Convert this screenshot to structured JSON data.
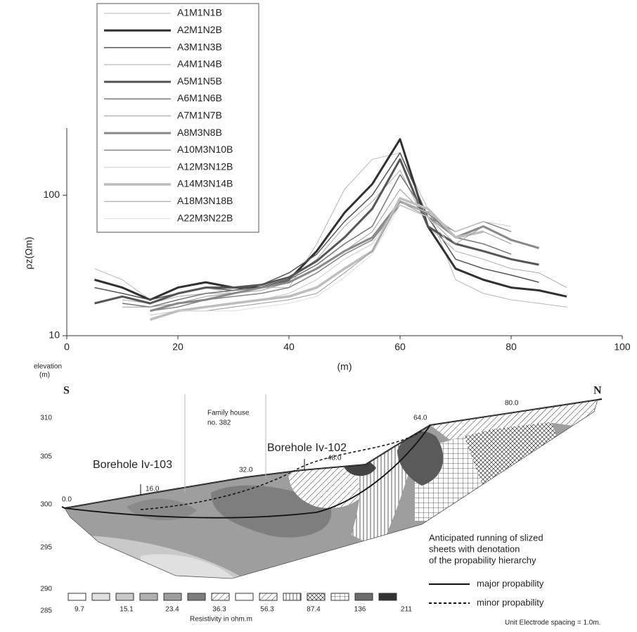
{
  "chart_data": {
    "type": "line",
    "x_label": "(m)",
    "y_label": "ρz(Ωm)",
    "log_y": true,
    "grid": false,
    "x": [
      0,
      5,
      10,
      15,
      20,
      25,
      30,
      35,
      40,
      45,
      50,
      55,
      60,
      65,
      70,
      75,
      80,
      85,
      90
    ],
    "xlim": [
      0,
      100
    ],
    "xticks": [
      0,
      20,
      40,
      60,
      80,
      100
    ],
    "ylim": [
      10,
      300
    ],
    "yticks": [
      10,
      100
    ],
    "series": [
      {
        "name": "A1M1N1B",
        "color": "#b8b8b8",
        "width": 1,
        "values": [
          null,
          30,
          25,
          18,
          20,
          22,
          20,
          22,
          22,
          45,
          110,
          180,
          200,
          80,
          25,
          20,
          18,
          17,
          16
        ]
      },
      {
        "name": "A2M1N2B",
        "color": "#303030",
        "width": 3,
        "values": [
          null,
          25,
          22,
          18,
          22,
          24,
          22,
          22,
          25,
          40,
          75,
          120,
          250,
          60,
          30,
          25,
          22,
          21,
          19
        ]
      },
      {
        "name": "A3M1N3B",
        "color": "#555555",
        "width": 1.5,
        "values": [
          null,
          22,
          20,
          18,
          20,
          22,
          21,
          23,
          28,
          38,
          65,
          100,
          200,
          70,
          35,
          30,
          27,
          24,
          null
        ]
      },
      {
        "name": "A4M1N4B",
        "color": "#aaaaaa",
        "width": 1,
        "values": [
          null,
          null,
          18,
          17,
          19,
          20,
          20,
          22,
          25,
          35,
          60,
          90,
          150,
          60,
          40,
          35,
          30,
          28,
          22
        ]
      },
      {
        "name": "A5M1N5B",
        "color": "#555555",
        "width": 3,
        "values": [
          null,
          17,
          19,
          17,
          20,
          22,
          22,
          23,
          26,
          34,
          50,
          80,
          180,
          60,
          45,
          40,
          35,
          32,
          null
        ]
      },
      {
        "name": "A6M1N6B",
        "color": "#777777",
        "width": 1.5,
        "values": [
          null,
          null,
          17,
          16,
          18,
          20,
          21,
          22,
          25,
          32,
          45,
          60,
          140,
          70,
          50,
          45,
          38,
          null,
          null
        ]
      },
      {
        "name": "A7M1N7B",
        "color": "#999999",
        "width": 1,
        "values": [
          null,
          null,
          16,
          16,
          17,
          19,
          20,
          21,
          24,
          30,
          40,
          55,
          110,
          70,
          50,
          55,
          45,
          null,
          null
        ]
      },
      {
        "name": "A8M3N8B",
        "color": "#888888",
        "width": 3,
        "values": [
          null,
          null,
          null,
          15,
          17,
          18,
          20,
          22,
          24,
          30,
          40,
          50,
          90,
          75,
          50,
          60,
          48,
          42,
          null
        ]
      },
      {
        "name": "A10M3N10B",
        "color": "#858585",
        "width": 1.5,
        "values": [
          null,
          null,
          null,
          15,
          16,
          18,
          19,
          20,
          22,
          28,
          38,
          48,
          85,
          70,
          55,
          65,
          55,
          null,
          null
        ]
      },
      {
        "name": "A12M3N12B",
        "color": "#cccccc",
        "width": 1,
        "values": [
          null,
          null,
          null,
          14,
          15,
          16,
          17,
          18,
          20,
          25,
          35,
          45,
          90,
          75,
          55,
          65,
          60,
          null,
          null
        ]
      },
      {
        "name": "A14M3N14B",
        "color": "#bdbdbd",
        "width": 3.5,
        "values": [
          null,
          null,
          null,
          13,
          15,
          16,
          17,
          18,
          19,
          22,
          30,
          40,
          95,
          80,
          50,
          55,
          null,
          null,
          null
        ]
      },
      {
        "name": "A18M3N18B",
        "color": "#9a9a9a",
        "width": 1,
        "values": [
          null,
          null,
          null,
          null,
          15,
          15,
          16,
          17,
          18,
          20,
          28,
          40,
          90,
          70,
          45,
          60,
          null,
          null,
          null
        ]
      },
      {
        "name": "A22M3N22B",
        "color": "#dddddd",
        "width": 1,
        "values": [
          null,
          null,
          null,
          null,
          15,
          15,
          15,
          16,
          17,
          19,
          26,
          38,
          85,
          70,
          40,
          null,
          null,
          null,
          null
        ]
      }
    ]
  },
  "section": {
    "elevation_label": [
      "elevation",
      "(m)"
    ],
    "elevation_ticks": [
      310,
      305,
      300,
      295,
      290,
      285
    ],
    "south": "S",
    "north": "N",
    "family_house": [
      "Family house",
      "no. 382"
    ],
    "boreholes": [
      "Borehole Iv-103",
      "Borehole Iv-102"
    ],
    "distances": [
      "0.0",
      "16.0",
      "32.0",
      "48.0",
      "64.0",
      "80.0"
    ],
    "scale_labels": [
      "9.7",
      "15.1",
      "23.4",
      "36.3",
      "56.3",
      "87.4",
      "136",
      "211"
    ],
    "scale_title": "Resistivity in ohm.m",
    "note": [
      "Anticipated running of slized",
      "sheets with denotation",
      "of the propability hierarchy"
    ],
    "legend": [
      "major propability",
      "minor propability"
    ],
    "footnote": "Unit Electrode spacing = 1.0m."
  }
}
